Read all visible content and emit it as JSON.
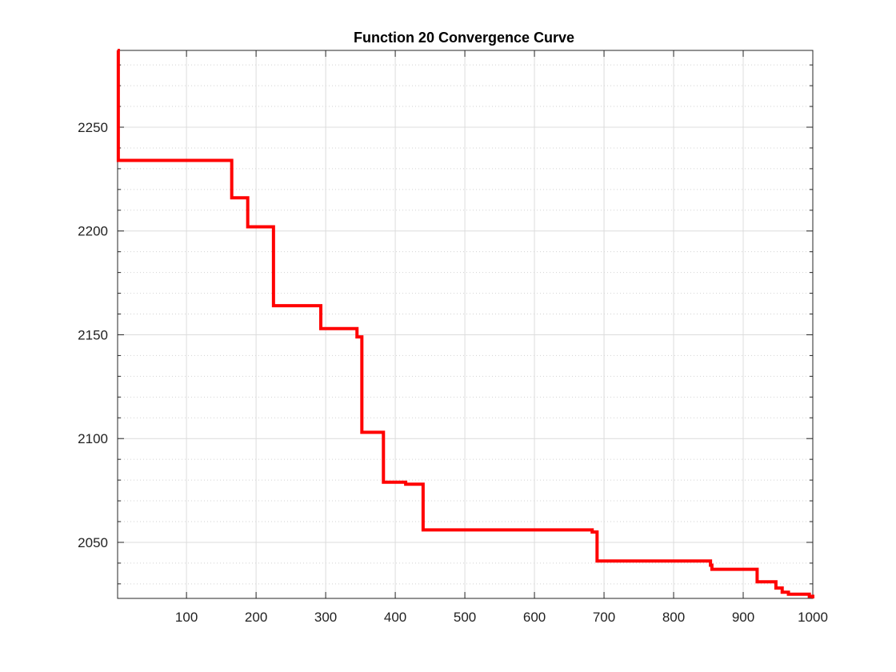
{
  "chart_data": {
    "type": "line",
    "title": "Function 20 Convergence Curve",
    "xlabel": "",
    "ylabel": "",
    "xlim": [
      1,
      1000
    ],
    "ylim": [
      2023,
      2287
    ],
    "x_ticks": [
      100,
      200,
      300,
      400,
      500,
      600,
      700,
      800,
      900,
      1000
    ],
    "y_ticks": [
      2050,
      2100,
      2150,
      2200,
      2250
    ],
    "grid": true,
    "minor_grid": true,
    "line_style": "step",
    "line_color": "#ff0000",
    "series": [
      {
        "x": [
          1,
          2,
          165,
          188,
          225,
          293,
          345,
          352,
          383,
          415,
          440,
          683,
          690,
          853,
          855,
          920,
          947,
          956,
          965,
          995,
          1000
        ],
        "y": [
          2287,
          2234,
          2216,
          2202,
          2164,
          2153,
          2149,
          2103,
          2079,
          2078,
          2056,
          2055,
          2041,
          2039,
          2037,
          2031,
          2028,
          2026,
          2025,
          2024,
          2023
        ]
      }
    ]
  }
}
